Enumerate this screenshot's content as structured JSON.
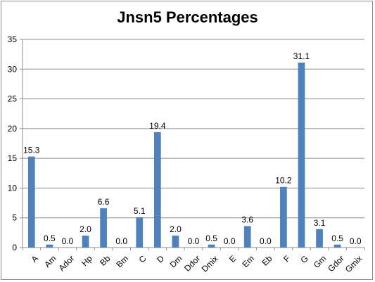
{
  "chart_data": {
    "type": "bar",
    "title": "Jnsn5 Percentages",
    "xlabel": "",
    "ylabel": "",
    "ylim": [
      0,
      35
    ],
    "yticks": [
      0,
      5,
      10,
      15,
      20,
      25,
      30,
      35
    ],
    "grid": true,
    "legend": "none",
    "bar_color": "#4f81bd",
    "categories": [
      "A",
      "Am",
      "Ador",
      "Hp",
      "Bb",
      "Bm",
      "C",
      "D",
      "Dm",
      "Ddor",
      "Dmix",
      "E",
      "Em",
      "Eb",
      "F",
      "G",
      "Gm",
      "Gdor",
      "Gmix"
    ],
    "values": [
      15.3,
      0.5,
      0.0,
      2.0,
      6.6,
      0.0,
      5.1,
      19.4,
      2.0,
      0.0,
      0.5,
      0.0,
      3.6,
      0.0,
      10.2,
      31.1,
      3.1,
      0.5,
      0.0
    ],
    "data_labels": [
      "15.3",
      "0.5",
      "0.0",
      "2.0",
      "6.6",
      "0.0",
      "5.1",
      "19.4",
      "2.0",
      "0.0",
      "0.5",
      "0.0",
      "3.6",
      "0.0",
      "10.2",
      "31.1",
      "3.1",
      "0.5",
      "0.0"
    ]
  }
}
